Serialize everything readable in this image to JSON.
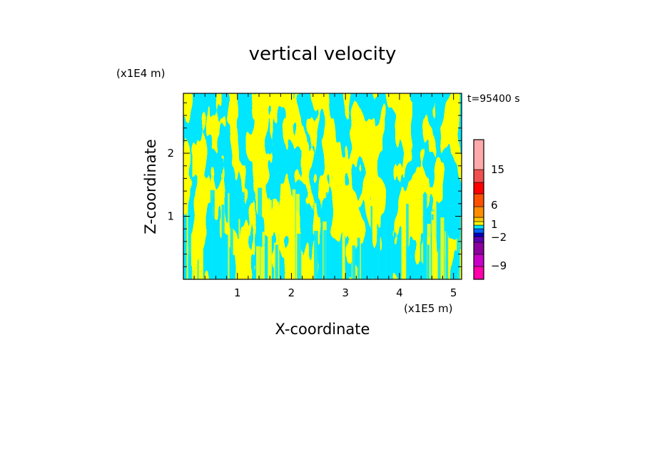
{
  "chart_data": {
    "type": "heatmap",
    "title": "vertical velocity",
    "xlabel": "X-coordinate",
    "ylabel": "Z-coordinate",
    "x_unit": "(x1E5 m)",
    "y_unit": "(x1E4 m)",
    "time_label": "t=95400 s",
    "xlim": [
      0,
      5.15
    ],
    "ylim": [
      0,
      2.95
    ],
    "x_ticks": [
      1,
      2,
      3,
      4,
      5
    ],
    "y_ticks": [
      1,
      2
    ],
    "colorbar": {
      "tick_labels": [
        "15",
        "6",
        "1",
        "−2",
        "−9"
      ],
      "levels": [
        {
          "color": "#ff00aa"
        },
        {
          "color": "#c800c8"
        },
        {
          "color": "#8c00a0"
        },
        {
          "color": "#5a00b4"
        },
        {
          "color": "#0000c8"
        },
        {
          "color": "#0064ff"
        },
        {
          "color": "#00e6ff"
        },
        {
          "color": "#ffff00"
        },
        {
          "color": "#ffc800"
        },
        {
          "color": "#ff8c00"
        },
        {
          "color": "#ff5000"
        },
        {
          "color": "#ff0000"
        },
        {
          "color": "#f05050"
        },
        {
          "color": "#ffaaaa"
        },
        {
          "color": "#ffe6e6"
        }
      ]
    },
    "field_colors": {
      "positive": "#ffff00",
      "negative": "#00e6ff"
    }
  }
}
